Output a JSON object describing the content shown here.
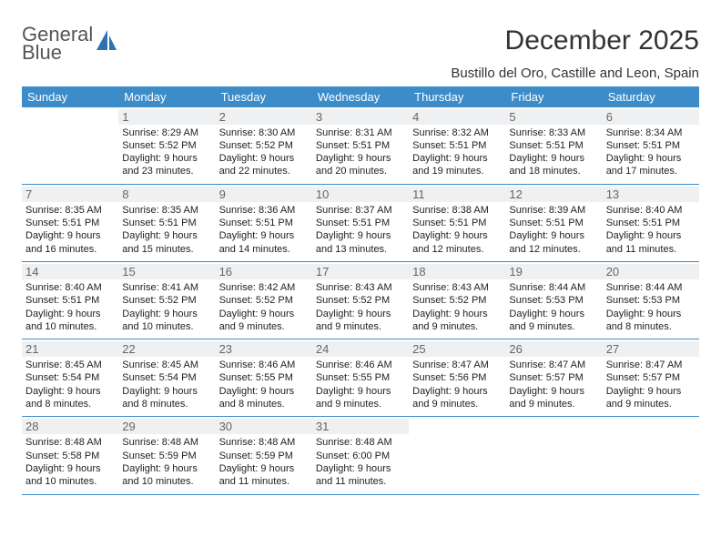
{
  "brand": {
    "name1": "General",
    "name2": "Blue"
  },
  "title": "December 2025",
  "subtitle": "Bustillo del Oro, Castille and Leon, Spain",
  "colors": {
    "header_bg": "#3c8cc9",
    "header_fg": "#ffffff",
    "daynum_bg": "#eef0f2",
    "daynum_fg": "#666666",
    "row_border": "#3c8cc9",
    "brand_blue": "#2f6fb3"
  },
  "calendar": {
    "days_of_week": [
      "Sunday",
      "Monday",
      "Tuesday",
      "Wednesday",
      "Thursday",
      "Friday",
      "Saturday"
    ],
    "first_weekday_index": 1,
    "num_days": 31,
    "days": [
      {
        "n": 1,
        "sunrise": "8:29 AM",
        "sunset": "5:52 PM",
        "daylight": "9 hours and 23 minutes."
      },
      {
        "n": 2,
        "sunrise": "8:30 AM",
        "sunset": "5:52 PM",
        "daylight": "9 hours and 22 minutes."
      },
      {
        "n": 3,
        "sunrise": "8:31 AM",
        "sunset": "5:51 PM",
        "daylight": "9 hours and 20 minutes."
      },
      {
        "n": 4,
        "sunrise": "8:32 AM",
        "sunset": "5:51 PM",
        "daylight": "9 hours and 19 minutes."
      },
      {
        "n": 5,
        "sunrise": "8:33 AM",
        "sunset": "5:51 PM",
        "daylight": "9 hours and 18 minutes."
      },
      {
        "n": 6,
        "sunrise": "8:34 AM",
        "sunset": "5:51 PM",
        "daylight": "9 hours and 17 minutes."
      },
      {
        "n": 7,
        "sunrise": "8:35 AM",
        "sunset": "5:51 PM",
        "daylight": "9 hours and 16 minutes."
      },
      {
        "n": 8,
        "sunrise": "8:35 AM",
        "sunset": "5:51 PM",
        "daylight": "9 hours and 15 minutes."
      },
      {
        "n": 9,
        "sunrise": "8:36 AM",
        "sunset": "5:51 PM",
        "daylight": "9 hours and 14 minutes."
      },
      {
        "n": 10,
        "sunrise": "8:37 AM",
        "sunset": "5:51 PM",
        "daylight": "9 hours and 13 minutes."
      },
      {
        "n": 11,
        "sunrise": "8:38 AM",
        "sunset": "5:51 PM",
        "daylight": "9 hours and 12 minutes."
      },
      {
        "n": 12,
        "sunrise": "8:39 AM",
        "sunset": "5:51 PM",
        "daylight": "9 hours and 12 minutes."
      },
      {
        "n": 13,
        "sunrise": "8:40 AM",
        "sunset": "5:51 PM",
        "daylight": "9 hours and 11 minutes."
      },
      {
        "n": 14,
        "sunrise": "8:40 AM",
        "sunset": "5:51 PM",
        "daylight": "9 hours and 10 minutes."
      },
      {
        "n": 15,
        "sunrise": "8:41 AM",
        "sunset": "5:52 PM",
        "daylight": "9 hours and 10 minutes."
      },
      {
        "n": 16,
        "sunrise": "8:42 AM",
        "sunset": "5:52 PM",
        "daylight": "9 hours and 9 minutes."
      },
      {
        "n": 17,
        "sunrise": "8:43 AM",
        "sunset": "5:52 PM",
        "daylight": "9 hours and 9 minutes."
      },
      {
        "n": 18,
        "sunrise": "8:43 AM",
        "sunset": "5:52 PM",
        "daylight": "9 hours and 9 minutes."
      },
      {
        "n": 19,
        "sunrise": "8:44 AM",
        "sunset": "5:53 PM",
        "daylight": "9 hours and 9 minutes."
      },
      {
        "n": 20,
        "sunrise": "8:44 AM",
        "sunset": "5:53 PM",
        "daylight": "9 hours and 8 minutes."
      },
      {
        "n": 21,
        "sunrise": "8:45 AM",
        "sunset": "5:54 PM",
        "daylight": "9 hours and 8 minutes."
      },
      {
        "n": 22,
        "sunrise": "8:45 AM",
        "sunset": "5:54 PM",
        "daylight": "9 hours and 8 minutes."
      },
      {
        "n": 23,
        "sunrise": "8:46 AM",
        "sunset": "5:55 PM",
        "daylight": "9 hours and 8 minutes."
      },
      {
        "n": 24,
        "sunrise": "8:46 AM",
        "sunset": "5:55 PM",
        "daylight": "9 hours and 9 minutes."
      },
      {
        "n": 25,
        "sunrise": "8:47 AM",
        "sunset": "5:56 PM",
        "daylight": "9 hours and 9 minutes."
      },
      {
        "n": 26,
        "sunrise": "8:47 AM",
        "sunset": "5:57 PM",
        "daylight": "9 hours and 9 minutes."
      },
      {
        "n": 27,
        "sunrise": "8:47 AM",
        "sunset": "5:57 PM",
        "daylight": "9 hours and 9 minutes."
      },
      {
        "n": 28,
        "sunrise": "8:48 AM",
        "sunset": "5:58 PM",
        "daylight": "9 hours and 10 minutes."
      },
      {
        "n": 29,
        "sunrise": "8:48 AM",
        "sunset": "5:59 PM",
        "daylight": "9 hours and 10 minutes."
      },
      {
        "n": 30,
        "sunrise": "8:48 AM",
        "sunset": "5:59 PM",
        "daylight": "9 hours and 11 minutes."
      },
      {
        "n": 31,
        "sunrise": "8:48 AM",
        "sunset": "6:00 PM",
        "daylight": "9 hours and 11 minutes."
      }
    ]
  },
  "labels": {
    "sunrise": "Sunrise:",
    "sunset": "Sunset:",
    "daylight": "Daylight:"
  }
}
